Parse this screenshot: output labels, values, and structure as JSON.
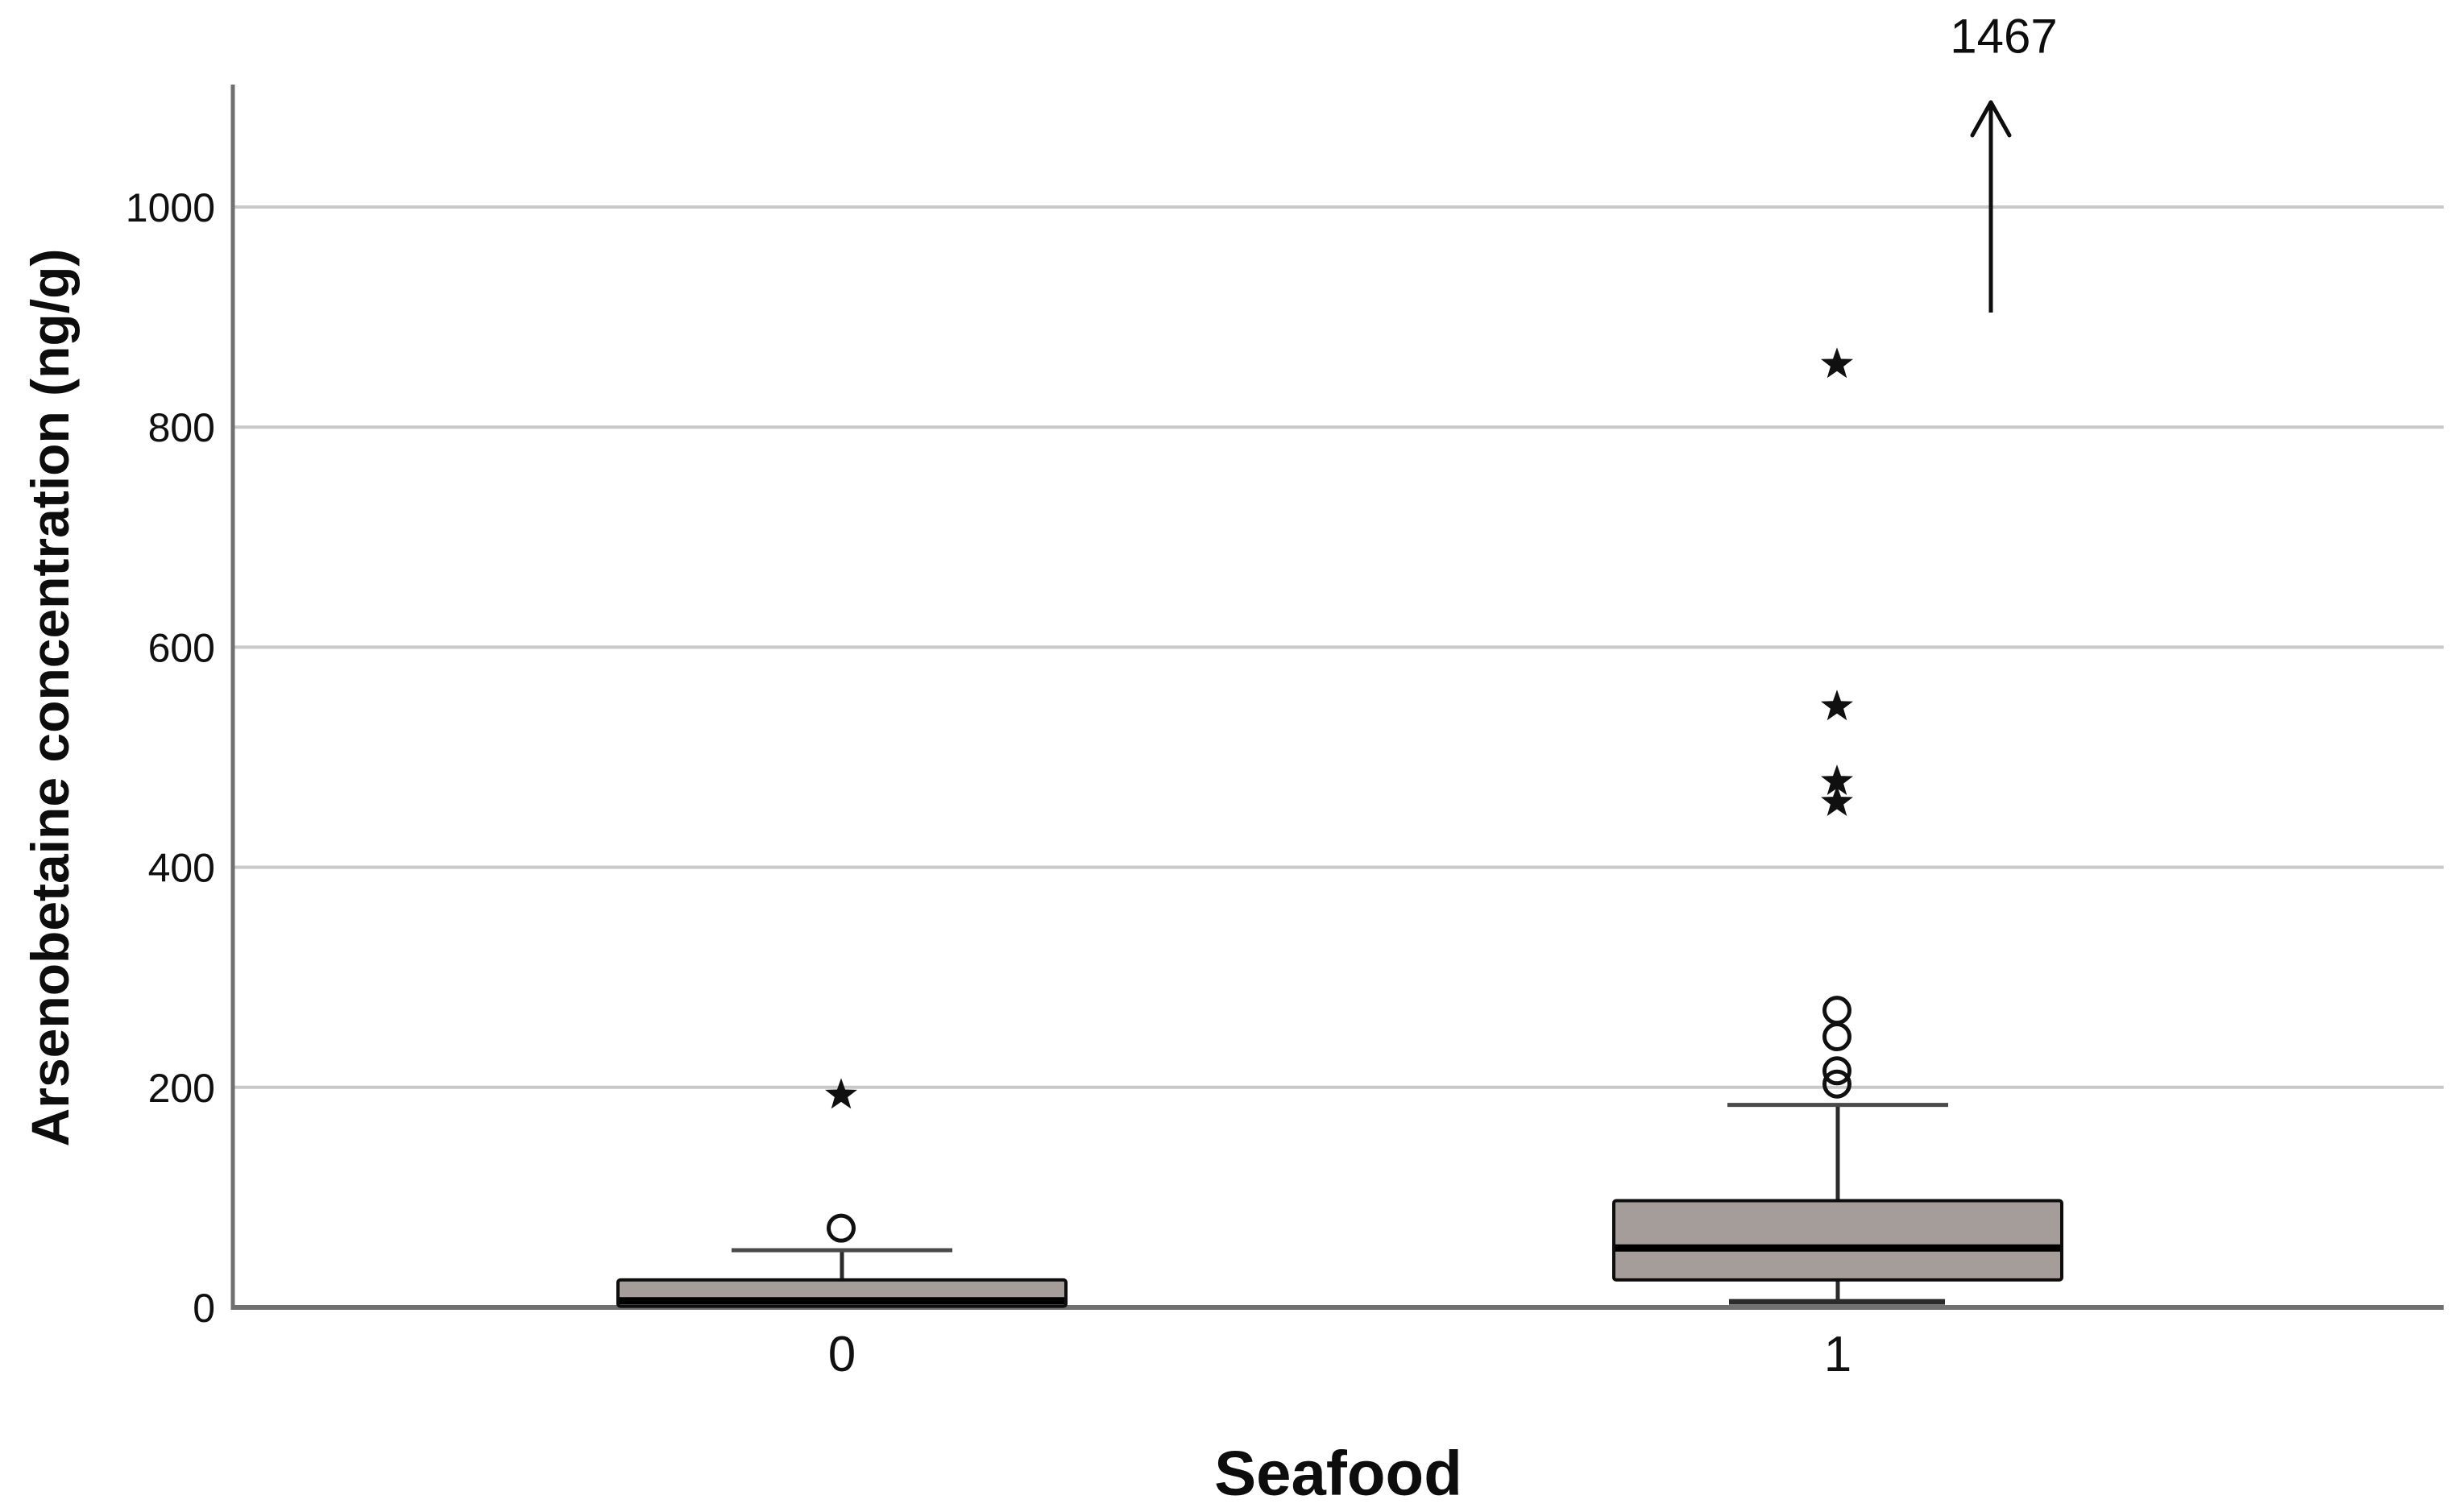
{
  "chart_data": {
    "type": "boxplot",
    "title": "",
    "xlabel": "Seafood",
    "ylabel": "Arsenobetaine concentration (ng/g)",
    "ylim": [
      0,
      1100
    ],
    "yticks": [
      0,
      200,
      400,
      600,
      800,
      1000
    ],
    "grid": true,
    "legend": "none",
    "categories": [
      "0",
      "1"
    ],
    "boxes": [
      {
        "category": "0",
        "q1": 1,
        "median": 6,
        "q3": 25,
        "whisker_low": 0,
        "whisker_high": 52,
        "outliers_mild": [
          72
        ],
        "outliers_extreme": [
          193
        ]
      },
      {
        "category": "1",
        "q1": 25,
        "median": 54,
        "q3": 97,
        "whisker_low": 5,
        "whisker_high": 184,
        "outliers_mild": [
          203,
          215,
          246,
          270
        ],
        "outliers_extreme": [
          459,
          478,
          546,
          857
        ]
      }
    ],
    "offscale_annotation": {
      "text": "1467",
      "value": 1467,
      "applies_to_category": "1",
      "marker": "up-arrow"
    },
    "markers": {
      "mild": "open-circle-outlier-marker",
      "extreme": "filled-star-extreme-marker"
    },
    "colors": {
      "box_fill": "#a49d99",
      "box_border": "#0d0d0d",
      "median": "#000000",
      "whisker": "#2b2b2b",
      "cap": "#4a4a4a",
      "grid": "#c9c9c9",
      "axis": "#707070",
      "text": "#101010",
      "background": "#ffffff"
    }
  }
}
